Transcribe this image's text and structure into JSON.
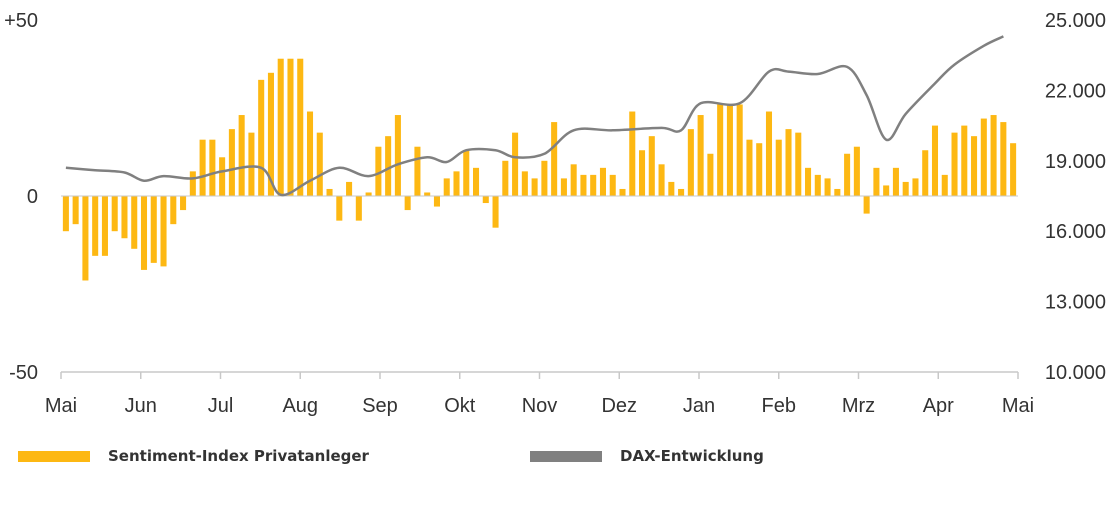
{
  "chart_data": {
    "type": "bar",
    "title": "",
    "xlabel": "",
    "x_tick_labels": [
      "Mai",
      "Jun",
      "Jul",
      "Aug",
      "Sep",
      "Okt",
      "Nov",
      "Dez",
      "Jan",
      "Feb",
      "Mrz",
      "Apr",
      "Mai"
    ],
    "y_left": {
      "tick_labels": [
        "+50",
        "0",
        "-50"
      ],
      "range": [
        -50,
        50
      ]
    },
    "y_right": {
      "tick_labels": [
        "25.000",
        "22.000",
        "19.000",
        "16.000",
        "13.000",
        "10.000"
      ],
      "range": [
        10000,
        25000
      ]
    },
    "grid": false,
    "legend_position": "bottom",
    "series": [
      {
        "name": "Sentiment-Index Privatanleger",
        "kind": "bar",
        "axis": "left",
        "color": "#FDB813",
        "values": [
          -10,
          -8,
          -24,
          -17,
          -17,
          -10,
          -12,
          -15,
          -21,
          -19,
          -20,
          -8,
          -4,
          7,
          16,
          16,
          11,
          19,
          23,
          18,
          33,
          35,
          39,
          39,
          39,
          24,
          18,
          2,
          -7,
          4,
          -7,
          1,
          14,
          17,
          23,
          -4,
          14,
          1,
          -3,
          5,
          7,
          13,
          8,
          -2,
          -9,
          10,
          18,
          7,
          5,
          10,
          21,
          5,
          9,
          6,
          6,
          8,
          6,
          2,
          24,
          13,
          17,
          9,
          4,
          2,
          19,
          23,
          12,
          26,
          26,
          26,
          16,
          15,
          24,
          16,
          19,
          18,
          8,
          6,
          5,
          2,
          12,
          14,
          -5,
          8,
          3,
          8,
          4,
          5,
          13,
          20,
          6,
          18,
          20,
          17,
          22,
          23,
          21,
          15
        ]
      },
      {
        "name": "DAX-Entwicklung",
        "kind": "line",
        "axis": "right",
        "color": "#808080",
        "points": [
          [
            0,
            18700
          ],
          [
            3,
            18600
          ],
          [
            6,
            18500
          ],
          [
            8,
            18150
          ],
          [
            10,
            18350
          ],
          [
            13,
            18250
          ],
          [
            16,
            18550
          ],
          [
            20,
            18700
          ],
          [
            22,
            17550
          ],
          [
            25,
            18150
          ],
          [
            28,
            18700
          ],
          [
            31,
            18350
          ],
          [
            34,
            18850
          ],
          [
            37,
            19150
          ],
          [
            39,
            18950
          ],
          [
            41,
            19450
          ],
          [
            44,
            19450
          ],
          [
            46,
            19150
          ],
          [
            49,
            19300
          ],
          [
            52,
            20300
          ],
          [
            56,
            20300
          ],
          [
            61,
            20400
          ],
          [
            63,
            20300
          ],
          [
            65,
            21450
          ],
          [
            69,
            21450
          ],
          [
            72,
            22800
          ],
          [
            74,
            22800
          ],
          [
            77,
            22700
          ],
          [
            80,
            23000
          ],
          [
            82,
            21800
          ],
          [
            84,
            19900
          ],
          [
            86,
            21000
          ],
          [
            89,
            22300
          ],
          [
            91,
            23100
          ],
          [
            94,
            23900
          ],
          [
            96,
            24300
          ]
        ]
      }
    ]
  },
  "legend": {
    "sentiment_label": "Sentiment-Index Privatanleger",
    "dax_label": "DAX-Entwicklung"
  }
}
